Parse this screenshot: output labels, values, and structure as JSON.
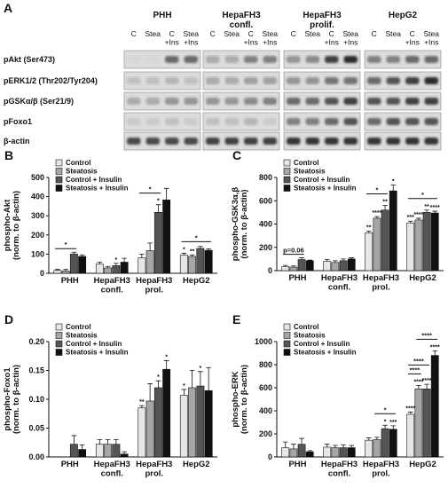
{
  "blot": {
    "panel": "A",
    "groups": [
      "PHH",
      "HepaFH3 confl.",
      "HepaFH3 prolif.",
      "HepG2"
    ],
    "lanes": [
      "C",
      "Stea",
      "C +Ins",
      "Stea +Ins"
    ],
    "rows": [
      "pAkt (Ser473)",
      "pERK1/2 (Thr202/Tyr204)",
      "pGSKα/β (Ser21/9)",
      "pFoxo1",
      "β-actin"
    ]
  },
  "chart_data": [
    {
      "type": "bar",
      "panel": "B",
      "ylabel": [
        "phospho-Akt",
        "(norm. to β-actin)"
      ],
      "categories": [
        "PHH",
        "HepaFH3 confl.",
        "HepaFH3 prol.",
        "HepG2"
      ],
      "ylim": [
        0,
        500
      ],
      "yticks": [
        0,
        100,
        200,
        300,
        400,
        500
      ],
      "series": [
        {
          "name": "Control",
          "color": "#e6e6e6",
          "values": [
            15,
            48,
            80,
            95
          ],
          "errors": [
            5,
            10,
            20,
            10
          ]
        },
        {
          "name": "Steatosis",
          "color": "#a6a6a6",
          "values": [
            12,
            28,
            118,
            88
          ],
          "errors": [
            8,
            8,
            40,
            8
          ]
        },
        {
          "name": "Control + Insulin",
          "color": "#555555",
          "values": [
            100,
            40,
            318,
            130
          ],
          "errors": [
            10,
            12,
            40,
            10
          ]
        },
        {
          "name": "Steatosis + Insulin",
          "color": "#111111",
          "values": [
            88,
            58,
            383,
            120
          ],
          "errors": [
            8,
            20,
            60,
            8
          ]
        }
      ],
      "annotations": [
        {
          "text": "*",
          "category": 1,
          "series": 2
        },
        {
          "text": "*",
          "category": 2,
          "series": 2
        },
        {
          "text": "*",
          "category": 3,
          "series": 0
        },
        {
          "text": "**",
          "category": 3,
          "series": 1
        }
      ],
      "brackets": [
        {
          "text": "*",
          "category": 0,
          "from": 0,
          "to": 2
        },
        {
          "text": "*",
          "category": 2,
          "from": 0,
          "to": 2
        },
        {
          "text": "*",
          "category": 3,
          "from": 0,
          "to": 3
        }
      ]
    },
    {
      "type": "bar",
      "panel": "C",
      "ylabel": [
        "phospho-GSK3α,β",
        "(norm. to β-actin)"
      ],
      "categories": [
        "PHH",
        "HepaFH3 confl.",
        "HepaFH3 prol.",
        "HepG2"
      ],
      "ylim": [
        0,
        800
      ],
      "yticks": [
        0,
        200,
        400,
        600,
        800
      ],
      "series": [
        {
          "name": "Control",
          "color": "#e6e6e6",
          "values": [
            35,
            80,
            325,
            410
          ],
          "errors": [
            10,
            15,
            15,
            15
          ]
        },
        {
          "name": "Steatosis",
          "color": "#a6a6a6",
          "values": [
            30,
            70,
            450,
            435
          ],
          "errors": [
            10,
            15,
            15,
            15
          ]
        },
        {
          "name": "Control + Insulin",
          "color": "#555555",
          "values": [
            95,
            85,
            520,
            500
          ],
          "errors": [
            15,
            15,
            40,
            20
          ]
        },
        {
          "name": "Steatosis + Insulin",
          "color": "#111111",
          "values": [
            85,
            100,
            685,
            495
          ],
          "errors": [
            5,
            10,
            50,
            15
          ]
        }
      ],
      "annotations": [
        {
          "text": "**",
          "category": 2,
          "series": 0
        },
        {
          "text": "****",
          "category": 2,
          "series": 1
        },
        {
          "text": "**",
          "category": 2,
          "series": 2
        },
        {
          "text": "*",
          "category": 2,
          "series": 3
        },
        {
          "text": "***",
          "category": 3,
          "series": 0
        },
        {
          "text": "****",
          "category": 3,
          "series": 1
        },
        {
          "text": "**",
          "category": 3,
          "series": 2
        },
        {
          "text": "****",
          "category": 3,
          "series": 3
        }
      ],
      "brackets": [
        {
          "text": "p=0.06",
          "category": 0,
          "from": 0,
          "to": 2
        },
        {
          "text": "*",
          "category": 2,
          "from": 0,
          "to": 2
        },
        {
          "text": "*",
          "category": 3,
          "from": 0,
          "to": 3
        }
      ]
    },
    {
      "type": "bar",
      "panel": "D",
      "ylabel": [
        "phospho-Foxo1",
        "(norm. to β-actin)"
      ],
      "categories": [
        "PHH",
        "HepaFH3 confl.",
        "HepaFH3 prol.",
        "HepG2"
      ],
      "ylim": [
        0,
        0.2
      ],
      "yticks": [
        {
          "value": 0,
          "label": "0.00"
        },
        {
          "value": 0.05,
          "label": "0.05"
        },
        {
          "value": 0.1,
          "label": "0.10"
        },
        {
          "value": 0.15,
          "label": "0.15"
        },
        {
          "value": 0.2,
          "label": "0.20"
        }
      ],
      "series": [
        {
          "name": "Control",
          "color": "#e6e6e6",
          "values": [
            0,
            0.022,
            0.085,
            0.107
          ],
          "errors": [
            0,
            0.008,
            0.004,
            0.01
          ]
        },
        {
          "name": "Steatosis",
          "color": "#a6a6a6",
          "values": [
            0,
            0.022,
            0.097,
            0.12
          ],
          "errors": [
            0,
            0.008,
            0.03,
            0.03
          ]
        },
        {
          "name": "Control + Insulin",
          "color": "#555555",
          "values": [
            0.022,
            0.022,
            0.12,
            0.123
          ],
          "errors": [
            0.015,
            0.008,
            0.012,
            0.025
          ]
        },
        {
          "name": "Steatosis + Insulin",
          "color": "#111111",
          "values": [
            0.013,
            0.005,
            0.152,
            0.115
          ],
          "errors": [
            0.008,
            0.004,
            0.015,
            0.04
          ]
        }
      ],
      "annotations": [
        {
          "text": "**",
          "category": 2,
          "series": 0
        },
        {
          "text": "*",
          "category": 2,
          "series": 2
        },
        {
          "text": "*",
          "category": 2,
          "series": 3
        },
        {
          "text": "*",
          "category": 3,
          "series": 0
        },
        {
          "text": "*",
          "category": 3,
          "series": 2
        }
      ],
      "brackets": []
    },
    {
      "type": "bar",
      "panel": "E",
      "ylabel": [
        "phospho-ERK",
        "(norm. to β-actin)"
      ],
      "categories": [
        "PHH",
        "HepaFH3 confl.",
        "HepaFH3 prol.",
        "HepG2"
      ],
      "ylim": [
        0,
        1000
      ],
      "yticks": [
        0,
        200,
        400,
        600,
        800,
        1000
      ],
      "series": [
        {
          "name": "Control",
          "color": "#e6e6e6",
          "values": [
            80,
            85,
            145,
            370
          ],
          "errors": [
            50,
            25,
            20,
            20
          ]
        },
        {
          "name": "Steatosis",
          "color": "#a6a6a6",
          "values": [
            70,
            80,
            150,
            590
          ],
          "errors": [
            40,
            20,
            20,
            30
          ]
        },
        {
          "name": "Control + Insulin",
          "color": "#555555",
          "values": [
            110,
            80,
            245,
            590
          ],
          "errors": [
            50,
            25,
            30,
            40
          ]
        },
        {
          "name": "Steatosis + Insulin",
          "color": "#111111",
          "values": [
            45,
            80,
            240,
            880
          ],
          "errors": [
            10,
            20,
            30,
            40
          ]
        }
      ],
      "annotations": [
        {
          "text": "*",
          "category": 2,
          "series": 2
        },
        {
          "text": "***",
          "category": 2,
          "series": 3
        },
        {
          "text": "****",
          "category": 3,
          "series": 0
        },
        {
          "text": "****",
          "category": 3,
          "series": 1
        },
        {
          "text": "****",
          "category": 3,
          "series": 2
        },
        {
          "text": "****",
          "category": 3,
          "series": 3
        }
      ],
      "brackets": [
        {
          "text": "*",
          "category": 2,
          "from": 1,
          "to": 3
        },
        {
          "text": "****",
          "category": 3,
          "from": 0,
          "to": 1
        },
        {
          "text": "****",
          "category": 3,
          "from": 0,
          "to": 2
        },
        {
          "text": "****",
          "category": 3,
          "from": 1,
          "to": 3
        }
      ]
    }
  ]
}
